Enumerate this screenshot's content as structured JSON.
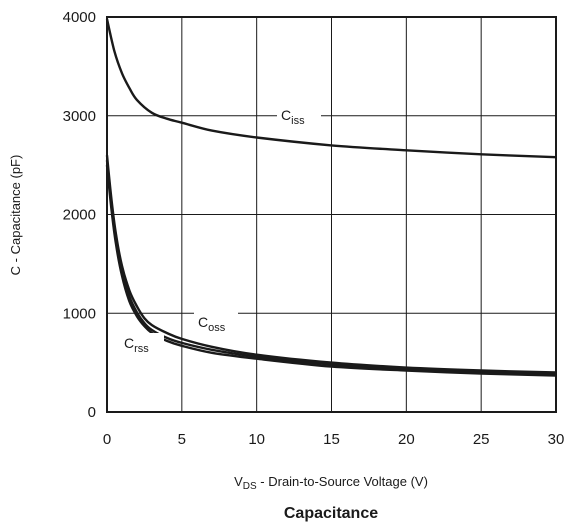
{
  "chart_data": {
    "type": "line",
    "title": "Capacitance",
    "xlabel_main": "V",
    "xlabel_sub": "DS",
    "xlabel_rest": " - Drain-to-Source Voltage (V)",
    "ylabel": "C - Capacitance (pF)",
    "xlim": [
      0,
      30
    ],
    "ylim": [
      0,
      4000
    ],
    "x_ticks": [
      "0",
      "5",
      "10",
      "15",
      "20",
      "25",
      "30"
    ],
    "y_ticks": [
      "0",
      "1000",
      "2000",
      "3000",
      "4000"
    ],
    "grid": true,
    "line_color": "#1a1a1a",
    "series": [
      {
        "name_main": "C",
        "name_sub": "iss",
        "x": [
          0,
          0.5,
          1,
          1.5,
          2,
          3,
          4,
          5,
          7,
          10,
          15,
          20,
          25,
          30
        ],
        "values": [
          3980,
          3650,
          3430,
          3280,
          3160,
          3030,
          2970,
          2930,
          2850,
          2780,
          2700,
          2650,
          2610,
          2580
        ]
      },
      {
        "name_main": "C",
        "name_sub": "oss",
        "x": [
          0,
          0.3,
          0.6,
          1,
          1.5,
          2,
          2.5,
          3,
          4,
          5,
          7,
          10,
          15,
          20,
          25,
          30
        ],
        "values": [
          2600,
          2150,
          1800,
          1480,
          1230,
          1070,
          950,
          880,
          800,
          740,
          660,
          580,
          500,
          450,
          420,
          400
        ]
      },
      {
        "name_main": "C",
        "name_sub": "rss",
        "x": [
          0,
          0.3,
          0.6,
          1,
          1.5,
          2,
          2.5,
          3,
          4,
          5,
          7,
          10,
          15,
          20,
          25,
          30
        ],
        "values": [
          2500,
          2050,
          1700,
          1380,
          1120,
          970,
          870,
          800,
          720,
          670,
          600,
          540,
          460,
          420,
          390,
          370
        ]
      },
      {
        "name_main": "",
        "name_sub": "",
        "x": [
          0,
          0.3,
          0.6,
          1,
          1.5,
          2,
          2.5,
          3,
          4,
          5,
          7,
          10,
          15,
          20,
          25,
          30
        ],
        "values": [
          2550,
          2100,
          1750,
          1430,
          1170,
          1010,
          900,
          830,
          750,
          700,
          630,
          560,
          480,
          435,
          405,
          385
        ]
      }
    ]
  }
}
